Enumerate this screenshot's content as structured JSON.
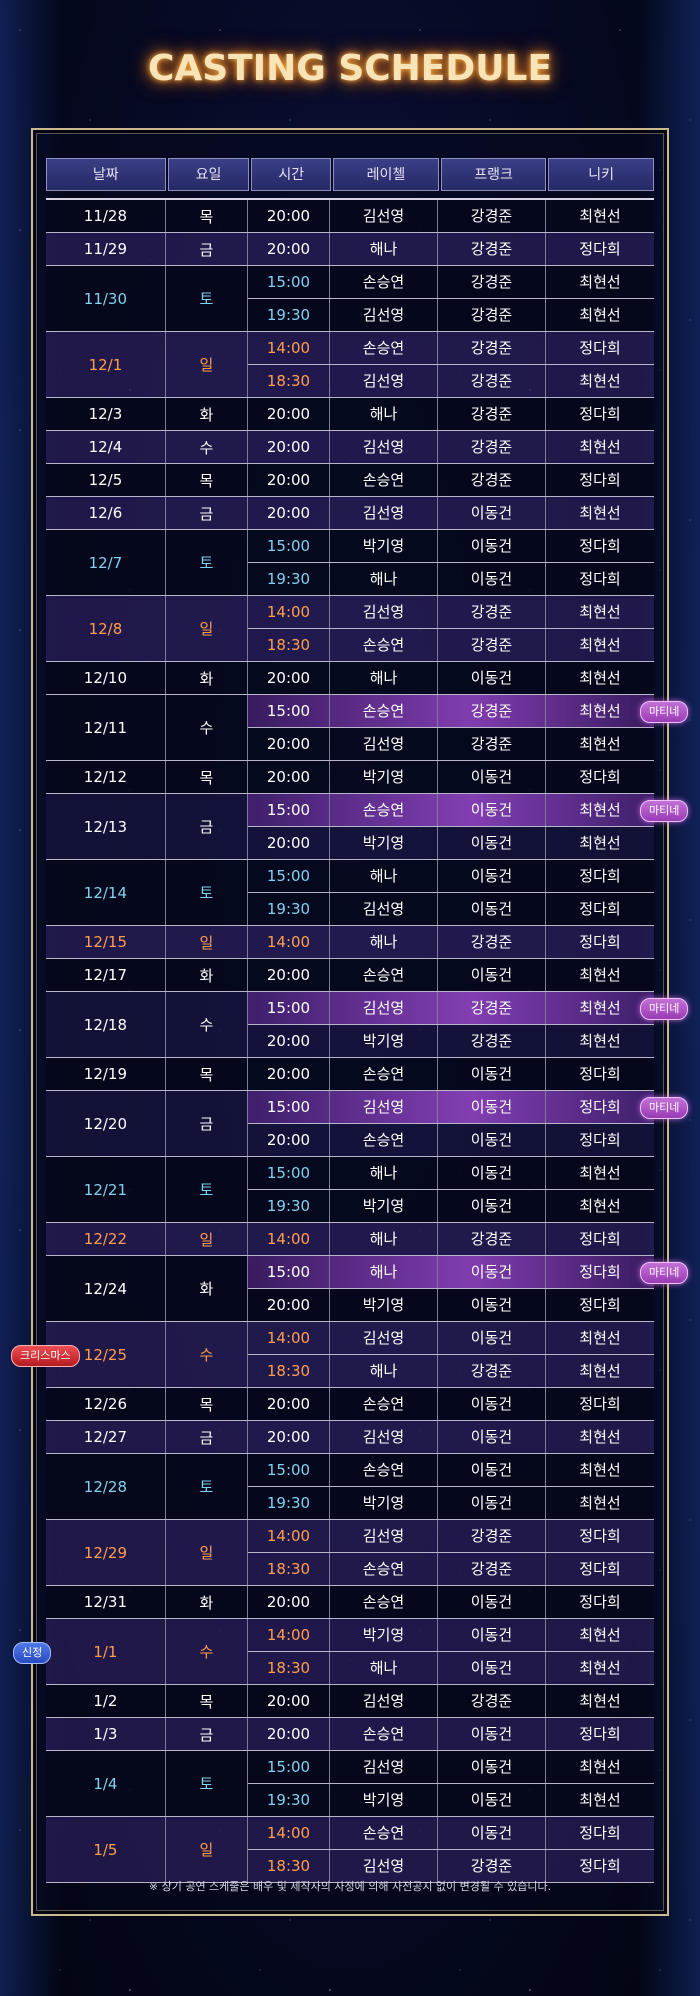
{
  "title": "CASTING SCHEDULE",
  "headers": [
    "날짜",
    "요일",
    "시간",
    "레이첼",
    "프랭크",
    "니키"
  ],
  "badges": {
    "matinee": "마티네",
    "christmas": "크리스마스",
    "new_year": "신정"
  },
  "notice": "※ 상기 공연 스케줄은 배우 및 제작사의 사정에 의해 사전공지 없이 변경될 수 있습니다.",
  "colors": {
    "weekday": "#ffffff",
    "saturday": "#84d2ee",
    "sunday_holiday": "#ff9e4e",
    "matinee_band": "#9a3bb5"
  },
  "schedule": [
    {
      "date": "11/28",
      "day": "목",
      "style": "w",
      "shade": "dark",
      "perfs": [
        {
          "time": "20:00",
          "rachel": "김선영",
          "frank": "강경준",
          "nicky": "최현선"
        }
      ]
    },
    {
      "date": "11/29",
      "day": "금",
      "style": "w",
      "shade": "purple",
      "perfs": [
        {
          "time": "20:00",
          "rachel": "해나",
          "frank": "강경준",
          "nicky": "정다희"
        }
      ]
    },
    {
      "date": "11/30",
      "day": "토",
      "style": "blue",
      "shade": "dark",
      "perfs": [
        {
          "time": "15:00",
          "rachel": "손승연",
          "frank": "강경준",
          "nicky": "최현선"
        },
        {
          "time": "19:30",
          "rachel": "김선영",
          "frank": "강경준",
          "nicky": "최현선"
        }
      ]
    },
    {
      "date": "12/1",
      "day": "일",
      "style": "orange",
      "shade": "purple",
      "perfs": [
        {
          "time": "14:00",
          "rachel": "손승연",
          "frank": "강경준",
          "nicky": "정다희"
        },
        {
          "time": "18:30",
          "rachel": "김선영",
          "frank": "강경준",
          "nicky": "최현선"
        }
      ]
    },
    {
      "date": "12/3",
      "day": "화",
      "style": "w",
      "shade": "dark",
      "perfs": [
        {
          "time": "20:00",
          "rachel": "해나",
          "frank": "강경준",
          "nicky": "정다희"
        }
      ]
    },
    {
      "date": "12/4",
      "day": "수",
      "style": "w",
      "shade": "purple",
      "perfs": [
        {
          "time": "20:00",
          "rachel": "김선영",
          "frank": "강경준",
          "nicky": "최현선"
        }
      ]
    },
    {
      "date": "12/5",
      "day": "목",
      "style": "w",
      "shade": "dark",
      "perfs": [
        {
          "time": "20:00",
          "rachel": "손승연",
          "frank": "강경준",
          "nicky": "정다희"
        }
      ]
    },
    {
      "date": "12/6",
      "day": "금",
      "style": "w",
      "shade": "purple",
      "perfs": [
        {
          "time": "20:00",
          "rachel": "김선영",
          "frank": "이동건",
          "nicky": "최현선"
        }
      ]
    },
    {
      "date": "12/7",
      "day": "토",
      "style": "blue",
      "shade": "dark",
      "perfs": [
        {
          "time": "15:00",
          "rachel": "박기영",
          "frank": "이동건",
          "nicky": "정다희"
        },
        {
          "time": "19:30",
          "rachel": "해나",
          "frank": "이동건",
          "nicky": "정다희"
        }
      ]
    },
    {
      "date": "12/8",
      "day": "일",
      "style": "orange",
      "shade": "purple",
      "perfs": [
        {
          "time": "14:00",
          "rachel": "김선영",
          "frank": "강경준",
          "nicky": "최현선"
        },
        {
          "time": "18:30",
          "rachel": "손승연",
          "frank": "강경준",
          "nicky": "최현선"
        }
      ]
    },
    {
      "date": "12/10",
      "day": "화",
      "style": "w",
      "shade": "dark",
      "perfs": [
        {
          "time": "20:00",
          "rachel": "해나",
          "frank": "이동건",
          "nicky": "최현선"
        }
      ]
    },
    {
      "date": "12/11",
      "day": "수",
      "style": "w",
      "shade": "dark",
      "perfs": [
        {
          "time": "15:00",
          "rachel": "손승연",
          "frank": "강경준",
          "nicky": "최현선",
          "matinee": true
        },
        {
          "time": "20:00",
          "rachel": "김선영",
          "frank": "강경준",
          "nicky": "최현선"
        }
      ]
    },
    {
      "date": "12/12",
      "day": "목",
      "style": "w",
      "shade": "dark",
      "perfs": [
        {
          "time": "20:00",
          "rachel": "박기영",
          "frank": "이동건",
          "nicky": "정다희"
        }
      ]
    },
    {
      "date": "12/13",
      "day": "금",
      "style": "w",
      "shade": "mid",
      "perfs": [
        {
          "time": "15:00",
          "rachel": "손승연",
          "frank": "이동건",
          "nicky": "최현선",
          "matinee": true
        },
        {
          "time": "20:00",
          "rachel": "박기영",
          "frank": "이동건",
          "nicky": "최현선"
        }
      ]
    },
    {
      "date": "12/14",
      "day": "토",
      "style": "blue",
      "shade": "dark",
      "perfs": [
        {
          "time": "15:00",
          "rachel": "해나",
          "frank": "이동건",
          "nicky": "정다희"
        },
        {
          "time": "19:30",
          "rachel": "김선영",
          "frank": "이동건",
          "nicky": "정다희"
        }
      ]
    },
    {
      "date": "12/15",
      "day": "일",
      "style": "orange",
      "shade": "purple",
      "perfs": [
        {
          "time": "14:00",
          "rachel": "해나",
          "frank": "강경준",
          "nicky": "정다희"
        }
      ]
    },
    {
      "date": "12/17",
      "day": "화",
      "style": "w",
      "shade": "dark",
      "perfs": [
        {
          "time": "20:00",
          "rachel": "손승연",
          "frank": "이동건",
          "nicky": "최현선"
        }
      ]
    },
    {
      "date": "12/18",
      "day": "수",
      "style": "w",
      "shade": "mid",
      "perfs": [
        {
          "time": "15:00",
          "rachel": "김선영",
          "frank": "강경준",
          "nicky": "최현선",
          "matinee": true
        },
        {
          "time": "20:00",
          "rachel": "박기영",
          "frank": "강경준",
          "nicky": "최현선"
        }
      ]
    },
    {
      "date": "12/19",
      "day": "목",
      "style": "w",
      "shade": "dark",
      "perfs": [
        {
          "time": "20:00",
          "rachel": "손승연",
          "frank": "이동건",
          "nicky": "정다희"
        }
      ]
    },
    {
      "date": "12/20",
      "day": "금",
      "style": "w",
      "shade": "mid",
      "perfs": [
        {
          "time": "15:00",
          "rachel": "김선영",
          "frank": "이동건",
          "nicky": "정다희",
          "matinee": true
        },
        {
          "time": "20:00",
          "rachel": "손승연",
          "frank": "이동건",
          "nicky": "정다희"
        }
      ]
    },
    {
      "date": "12/21",
      "day": "토",
      "style": "blue",
      "shade": "dark",
      "perfs": [
        {
          "time": "15:00",
          "rachel": "해나",
          "frank": "이동건",
          "nicky": "최현선"
        },
        {
          "time": "19:30",
          "rachel": "박기영",
          "frank": "이동건",
          "nicky": "최현선"
        }
      ]
    },
    {
      "date": "12/22",
      "day": "일",
      "style": "orange",
      "shade": "purple",
      "perfs": [
        {
          "time": "14:00",
          "rachel": "해나",
          "frank": "강경준",
          "nicky": "정다희"
        }
      ]
    },
    {
      "date": "12/24",
      "day": "화",
      "style": "w",
      "shade": "dark",
      "perfs": [
        {
          "time": "15:00",
          "rachel": "해나",
          "frank": "이동건",
          "nicky": "정다희",
          "matinee": true
        },
        {
          "time": "20:00",
          "rachel": "박기영",
          "frank": "이동건",
          "nicky": "정다희"
        }
      ]
    },
    {
      "date": "12/25",
      "day": "수",
      "style": "orange",
      "shade": "purple",
      "badge": "christmas",
      "perfs": [
        {
          "time": "14:00",
          "rachel": "김선영",
          "frank": "이동건",
          "nicky": "최현선"
        },
        {
          "time": "18:30",
          "rachel": "해나",
          "frank": "강경준",
          "nicky": "최현선"
        }
      ]
    },
    {
      "date": "12/26",
      "day": "목",
      "style": "w",
      "shade": "dark",
      "perfs": [
        {
          "time": "20:00",
          "rachel": "손승연",
          "frank": "이동건",
          "nicky": "정다희"
        }
      ]
    },
    {
      "date": "12/27",
      "day": "금",
      "style": "w",
      "shade": "purple",
      "perfs": [
        {
          "time": "20:00",
          "rachel": "김선영",
          "frank": "이동건",
          "nicky": "최현선"
        }
      ]
    },
    {
      "date": "12/28",
      "day": "토",
      "style": "blue",
      "shade": "dark",
      "perfs": [
        {
          "time": "15:00",
          "rachel": "손승연",
          "frank": "이동건",
          "nicky": "최현선"
        },
        {
          "time": "19:30",
          "rachel": "박기영",
          "frank": "이동건",
          "nicky": "최현선"
        }
      ]
    },
    {
      "date": "12/29",
      "day": "일",
      "style": "orange",
      "shade": "purple",
      "perfs": [
        {
          "time": "14:00",
          "rachel": "김선영",
          "frank": "강경준",
          "nicky": "정다희"
        },
        {
          "time": "18:30",
          "rachel": "손승연",
          "frank": "강경준",
          "nicky": "정다희"
        }
      ]
    },
    {
      "date": "12/31",
      "day": "화",
      "style": "w",
      "shade": "dark",
      "perfs": [
        {
          "time": "20:00",
          "rachel": "손승연",
          "frank": "이동건",
          "nicky": "정다희"
        }
      ]
    },
    {
      "date": "1/1",
      "day": "수",
      "style": "orange",
      "shade": "purple",
      "badge": "new_year",
      "perfs": [
        {
          "time": "14:00",
          "rachel": "박기영",
          "frank": "이동건",
          "nicky": "최현선"
        },
        {
          "time": "18:30",
          "rachel": "해나",
          "frank": "이동건",
          "nicky": "최현선"
        }
      ]
    },
    {
      "date": "1/2",
      "day": "목",
      "style": "w",
      "shade": "dark",
      "perfs": [
        {
          "time": "20:00",
          "rachel": "김선영",
          "frank": "강경준",
          "nicky": "최현선"
        }
      ]
    },
    {
      "date": "1/3",
      "day": "금",
      "style": "w",
      "shade": "purple",
      "perfs": [
        {
          "time": "20:00",
          "rachel": "손승연",
          "frank": "이동건",
          "nicky": "정다희"
        }
      ]
    },
    {
      "date": "1/4",
      "day": "토",
      "style": "blue",
      "shade": "dark",
      "perfs": [
        {
          "time": "15:00",
          "rachel": "김선영",
          "frank": "이동건",
          "nicky": "최현선"
        },
        {
          "time": "19:30",
          "rachel": "박기영",
          "frank": "이동건",
          "nicky": "최현선"
        }
      ]
    },
    {
      "date": "1/5",
      "day": "일",
      "style": "orange",
      "shade": "purple",
      "perfs": [
        {
          "time": "14:00",
          "rachel": "손승연",
          "frank": "이동건",
          "nicky": "정다희"
        },
        {
          "time": "18:30",
          "rachel": "김선영",
          "frank": "강경준",
          "nicky": "정다희"
        }
      ]
    }
  ]
}
